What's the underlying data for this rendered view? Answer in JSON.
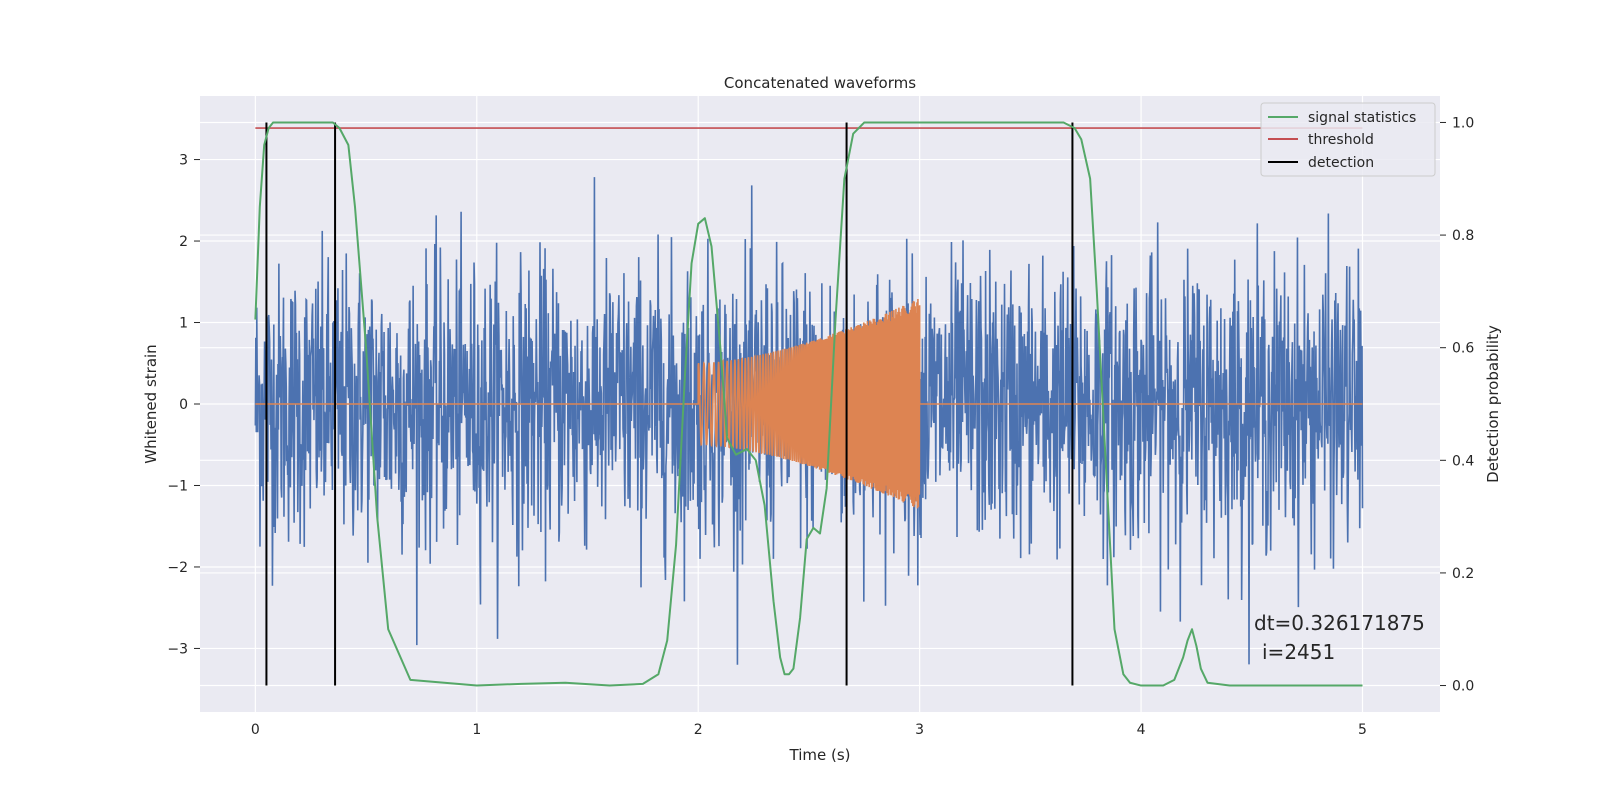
{
  "chart_data": {
    "type": "line",
    "title": "Concatenated waveforms",
    "xlabel": "Time (s)",
    "ylabel": "Whitened strain",
    "y2label": "Detection probability",
    "xlim": [
      -0.25,
      5.35
    ],
    "ylim": [
      -3.78,
      3.78
    ],
    "y2lim": [
      -0.047,
      1.047
    ],
    "x_ticks": [
      "0",
      "1",
      "2",
      "3",
      "4",
      "5"
    ],
    "y_ticks": [
      "3",
      "2",
      "1",
      "0",
      "−1",
      "−2",
      "−3"
    ],
    "y2_ticks": [
      "0.0",
      "0.2",
      "0.4",
      "0.6",
      "0.8",
      "1.0"
    ],
    "grid": true,
    "legend_position": "top-right",
    "colors": {
      "background": "#eaeaf2",
      "strain": "#4c72b0",
      "injection": "#dd8452",
      "statistic": "#55a868",
      "threshold": "#c44e52",
      "detection": "#000000"
    },
    "series": [
      {
        "name": "",
        "axis": "left",
        "kind": "noisy strain",
        "x_range": [
          0,
          5
        ],
        "approx_band": [
          -3.2,
          3.4
        ]
      },
      {
        "name": "",
        "axis": "left",
        "kind": "chirp injection",
        "x_range": [
          2.0,
          3.0
        ],
        "amplitude_start": 0.5,
        "amplitude_end": 1.3
      },
      {
        "name": "signal statistics",
        "axis": "right",
        "x": [
          0,
          0.02,
          0.04,
          0.06,
          0.08,
          0.1,
          0.2,
          0.3,
          0.35,
          0.38,
          0.42,
          0.45,
          0.5,
          0.55,
          0.6,
          0.7,
          1.0,
          1.2,
          1.4,
          1.6,
          1.75,
          1.82,
          1.86,
          1.9,
          1.94,
          1.97,
          2.0,
          2.03,
          2.06,
          2.1,
          2.13,
          2.17,
          2.22,
          2.26,
          2.3,
          2.34,
          2.37,
          2.39,
          2.41,
          2.43,
          2.46,
          2.49,
          2.52,
          2.55,
          2.58,
          2.62,
          2.66,
          2.7,
          2.75,
          3.0,
          3.5,
          3.65,
          3.7,
          3.73,
          3.77,
          3.8,
          3.84,
          3.88,
          3.92,
          3.95,
          4.0,
          4.1,
          4.15,
          4.19,
          4.21,
          4.23,
          4.25,
          4.27,
          4.3,
          4.4,
          4.6,
          4.8,
          5.0
        ],
        "values": [
          0.65,
          0.85,
          0.96,
          0.99,
          1.0,
          1.0,
          1.0,
          1.0,
          1.0,
          0.99,
          0.96,
          0.85,
          0.6,
          0.3,
          0.1,
          0.01,
          0.0,
          0.003,
          0.005,
          0.0,
          0.003,
          0.02,
          0.08,
          0.25,
          0.55,
          0.75,
          0.82,
          0.83,
          0.78,
          0.6,
          0.44,
          0.41,
          0.42,
          0.4,
          0.32,
          0.15,
          0.05,
          0.02,
          0.02,
          0.03,
          0.12,
          0.26,
          0.28,
          0.27,
          0.35,
          0.65,
          0.9,
          0.98,
          1.0,
          1.0,
          1.0,
          1.0,
          0.99,
          0.97,
          0.9,
          0.7,
          0.4,
          0.1,
          0.02,
          0.005,
          0.0,
          0.0,
          0.01,
          0.05,
          0.08,
          0.1,
          0.07,
          0.03,
          0.005,
          0.0,
          0.0,
          0.0,
          0.0
        ]
      },
      {
        "name": "threshold",
        "axis": "right",
        "x": [
          0,
          5
        ],
        "values": [
          0.99,
          0.99
        ]
      },
      {
        "name": "detection",
        "axis": "right",
        "x": [
          0.05,
          0.36,
          2.67,
          3.69
        ],
        "values": [
          1.0,
          1.0,
          1.0,
          1.0
        ],
        "style": "vertical lines from 0 to 1"
      }
    ],
    "annotations": [
      "dt=0.326171875",
      "i=2451"
    ]
  }
}
